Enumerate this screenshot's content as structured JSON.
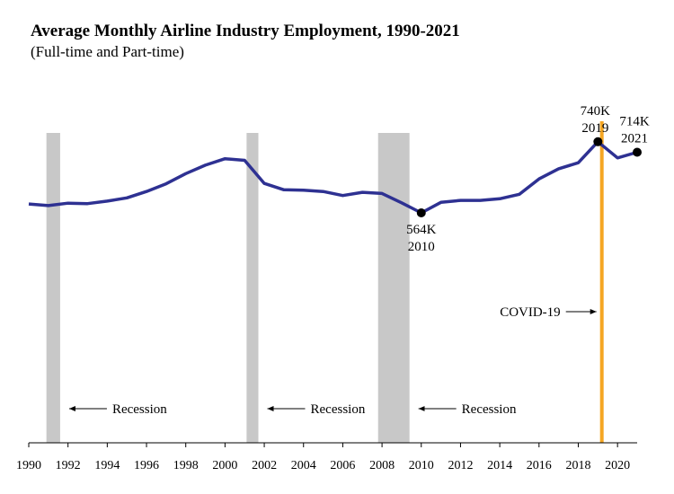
{
  "chart_data": {
    "type": "line",
    "title": "Average Monthly Airline Industry Employment, 1990-2021",
    "subtitle": "(Full-time and Part-time)",
    "x": [
      1990,
      1991,
      1992,
      1993,
      1994,
      1995,
      1996,
      1997,
      1998,
      1999,
      2000,
      2001,
      2002,
      2003,
      2004,
      2005,
      2006,
      2007,
      2008,
      2009,
      2010,
      2011,
      2012,
      2013,
      2014,
      2015,
      2016,
      2017,
      2018,
      2019,
      2020,
      2021
    ],
    "series": [
      {
        "values": [
          586,
          582,
          588,
          587,
          593,
          601,
          617,
          636,
          661,
          682,
          698,
          694,
          637,
          621,
          620,
          617,
          607,
          615,
          612,
          589,
          564,
          590,
          595,
          595,
          599,
          610,
          648,
          673,
          688,
          740,
          700,
          714
        ]
      }
    ],
    "xticks": [
      "1990",
      "1992",
      "1994",
      "1996",
      "1998",
      "2000",
      "2002",
      "2004",
      "2006",
      "2008",
      "2010",
      "2012",
      "2014",
      "2016",
      "2018",
      "2020"
    ],
    "xlim": [
      1990,
      2021
    ],
    "recessions": [
      {
        "start": 1990.9,
        "end": 1991.6,
        "label": "Recession"
      },
      {
        "start": 2001.1,
        "end": 2001.7,
        "label": "Recession"
      },
      {
        "start": 2007.8,
        "end": 2009.4,
        "label": "Recession"
      }
    ],
    "covid": {
      "x": 2019.2,
      "label": "COVID-19"
    },
    "annotations": [
      {
        "x": 2010,
        "value_label": "564K",
        "year_label": "2010"
      },
      {
        "x": 2019,
        "value_label": "740K",
        "year_label": "2019"
      },
      {
        "x": 2021,
        "value_label": "714K",
        "year_label": "2021"
      }
    ],
    "colors": {
      "line": "#2e3192",
      "recession": "#c8c8c8",
      "covid": "#f5a623",
      "marker": "#000000"
    },
    "grid": false,
    "legend": "none"
  }
}
